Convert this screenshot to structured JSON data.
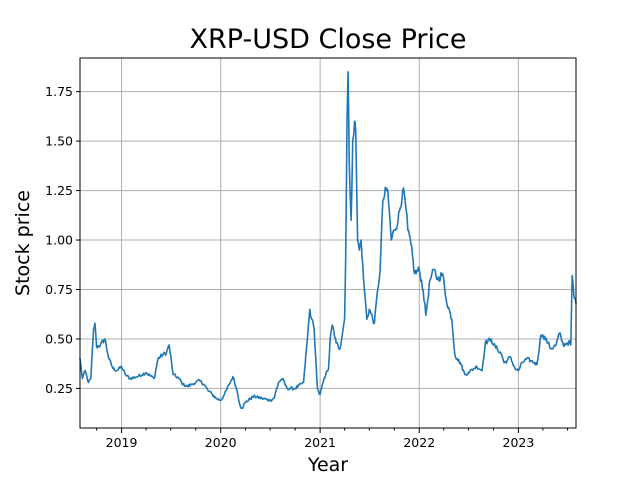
{
  "chart_data": {
    "type": "line",
    "title": "XRP-USD Close Price",
    "xlabel": "Year",
    "ylabel": "Stock price",
    "grid": true,
    "xlim": [
      "2018-08-01",
      "2023-08-01"
    ],
    "ylim": [
      0.05,
      1.92
    ],
    "x_ticks": [
      "2019",
      "2020",
      "2021",
      "2022",
      "2023"
    ],
    "y_ticks": [
      "0.25",
      "0.50",
      "0.75",
      "1.00",
      "1.25",
      "1.50",
      "1.75"
    ],
    "colors": {
      "line": "#1f77b4"
    },
    "series": [
      {
        "x": [
          "2018-08-01",
          "2018-08-10",
          "2018-08-20",
          "2018-09-01",
          "2018-09-10",
          "2018-09-20",
          "2018-09-25",
          "2018-10-01",
          "2018-10-15",
          "2018-11-01",
          "2018-11-15",
          "2018-12-01",
          "2018-12-15",
          "2019-01-01",
          "2019-01-15",
          "2019-02-01",
          "2019-03-01",
          "2019-04-01",
          "2019-05-01",
          "2019-05-15",
          "2019-06-01",
          "2019-06-15",
          "2019-06-25",
          "2019-07-10",
          "2019-08-01",
          "2019-08-15",
          "2019-09-01",
          "2019-09-15",
          "2019-10-01",
          "2019-10-15",
          "2019-11-01",
          "2019-11-15",
          "2019-12-01",
          "2019-12-15",
          "2020-01-01",
          "2020-01-15",
          "2020-02-01",
          "2020-02-15",
          "2020-03-01",
          "2020-03-13",
          "2020-03-20",
          "2020-04-01",
          "2020-05-01",
          "2020-06-01",
          "2020-07-01",
          "2020-07-15",
          "2020-08-01",
          "2020-08-15",
          "2020-09-01",
          "2020-10-01",
          "2020-11-01",
          "2020-11-15",
          "2020-11-24",
          "2020-12-01",
          "2020-12-10",
          "2020-12-22",
          "2020-12-29",
          "2021-01-01",
          "2021-01-15",
          "2021-02-01",
          "2021-02-07",
          "2021-02-15",
          "2021-03-01",
          "2021-03-15",
          "2021-04-01",
          "2021-04-05",
          "2021-04-10",
          "2021-04-14",
          "2021-04-18",
          "2021-04-25",
          "2021-05-01",
          "2021-05-08",
          "2021-05-12",
          "2021-05-19",
          "2021-05-25",
          "2021-06-01",
          "2021-06-10",
          "2021-06-22",
          "2021-07-01",
          "2021-07-20",
          "2021-08-01",
          "2021-08-10",
          "2021-08-20",
          "2021-09-01",
          "2021-09-07",
          "2021-09-20",
          "2021-10-01",
          "2021-10-15",
          "2021-11-01",
          "2021-11-10",
          "2021-11-20",
          "2021-12-01",
          "2021-12-15",
          "2022-01-01",
          "2022-01-15",
          "2022-01-25",
          "2022-02-10",
          "2022-02-25",
          "2022-03-10",
          "2022-03-28",
          "2022-04-10",
          "2022-05-01",
          "2022-05-12",
          "2022-05-20",
          "2022-06-01",
          "2022-06-18",
          "2022-07-01",
          "2022-07-20",
          "2022-08-01",
          "2022-08-20",
          "2022-09-01",
          "2022-09-23",
          "2022-10-01",
          "2022-10-15",
          "2022-11-01",
          "2022-11-09",
          "2022-11-20",
          "2022-12-01",
          "2022-12-20",
          "2023-01-01",
          "2023-01-15",
          "2023-02-01",
          "2023-02-15",
          "2023-03-01",
          "2023-03-10",
          "2023-03-25",
          "2023-04-01",
          "2023-04-20",
          "2023-05-01",
          "2023-05-20",
          "2023-06-01",
          "2023-06-15",
          "2023-06-30",
          "2023-07-10",
          "2023-07-13",
          "2023-07-18",
          "2023-07-24",
          "2023-08-01"
        ],
        "y": [
          0.4,
          0.3,
          0.34,
          0.28,
          0.3,
          0.55,
          0.58,
          0.46,
          0.47,
          0.5,
          0.4,
          0.35,
          0.34,
          0.36,
          0.32,
          0.3,
          0.31,
          0.33,
          0.3,
          0.4,
          0.42,
          0.43,
          0.47,
          0.32,
          0.3,
          0.27,
          0.26,
          0.27,
          0.28,
          0.29,
          0.27,
          0.24,
          0.22,
          0.2,
          0.19,
          0.22,
          0.27,
          0.31,
          0.24,
          0.16,
          0.15,
          0.18,
          0.21,
          0.2,
          0.19,
          0.2,
          0.28,
          0.3,
          0.25,
          0.25,
          0.28,
          0.5,
          0.65,
          0.6,
          0.55,
          0.25,
          0.22,
          0.22,
          0.3,
          0.35,
          0.5,
          0.57,
          0.48,
          0.45,
          0.6,
          0.9,
          1.6,
          1.85,
          1.4,
          1.1,
          1.5,
          1.6,
          1.55,
          1.0,
          0.95,
          1.0,
          0.8,
          0.6,
          0.65,
          0.58,
          0.75,
          0.85,
          1.2,
          1.25,
          1.25,
          1.0,
          1.05,
          1.1,
          1.25,
          1.2,
          1.05,
          0.98,
          0.83,
          0.85,
          0.75,
          0.62,
          0.8,
          0.85,
          0.8,
          0.83,
          0.7,
          0.6,
          0.42,
          0.4,
          0.38,
          0.32,
          0.33,
          0.35,
          0.36,
          0.34,
          0.48,
          0.5,
          0.47,
          0.45,
          0.42,
          0.38,
          0.39,
          0.41,
          0.35,
          0.34,
          0.38,
          0.4,
          0.39,
          0.38,
          0.37,
          0.52,
          0.52,
          0.48,
          0.45,
          0.47,
          0.53,
          0.47,
          0.48,
          0.48,
          0.47,
          0.82,
          0.72,
          0.68
        ]
      }
    ]
  }
}
